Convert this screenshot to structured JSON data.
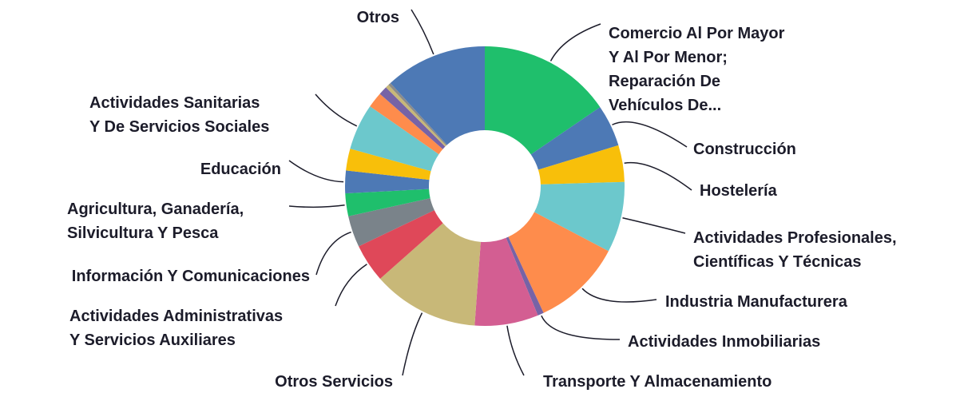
{
  "chart_data": {
    "type": "donut",
    "categories": [
      "Comercio Al Por Mayor Y Al Por Menor; Reparación De Vehículos De...",
      "Construcción",
      "Hostelería",
      "Actividades Profesionales, Científicas Y Técnicas",
      "Industria Manufacturera",
      "Actividades Inmobiliarias",
      "Transporte Y Almacenamiento",
      "Otros Servicios",
      "Actividades Administrativas Y Servicios Auxiliares",
      "Información Y Comunicaciones",
      "Agricultura, Ganadería, Silvicultura Y Pesca",
      "Educación",
      null,
      "Actividades Sanitarias Y De Servicios Sociales",
      null,
      null,
      null,
      null,
      "Otros"
    ],
    "values": [
      15.3,
      4.8,
      4.2,
      8.1,
      10.3,
      0.7,
      7.3,
      12.2,
      4.4,
      3.6,
      2.6,
      2.6,
      2.5,
      5.3,
      1.8,
      1.0,
      0.4,
      0.3,
      11.7
    ],
    "colors": [
      "#1fbf6c",
      "#4d79b5",
      "#f8bf0a",
      "#6cc8cc",
      "#fe8c4c",
      "#7663a6",
      "#d35e92",
      "#c8b878",
      "#df4859",
      "#7a838a",
      "#1fbf6c",
      "#4d79b5",
      "#f8bf0a",
      "#6cc8cc",
      "#fe8c4c",
      "#7663a6",
      "#c8b878",
      "#8b8b8b",
      "#4d79b5"
    ]
  }
}
